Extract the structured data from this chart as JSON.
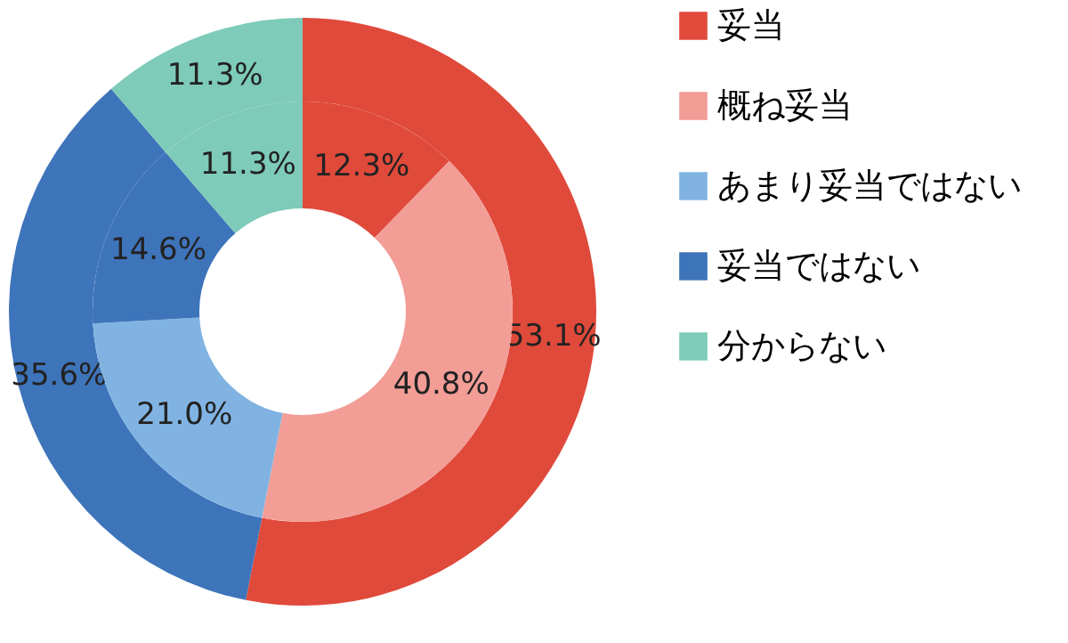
{
  "chart_data": {
    "type": "donut",
    "categories": [
      "妥当",
      "概ね妥当",
      "あまり妥当ではない",
      "妥当ではない",
      "分からない"
    ],
    "colors": [
      "#e04a3b",
      "#f29d96",
      "#80b3e2",
      "#3e74ba",
      "#7ecbb9"
    ],
    "series": [
      {
        "values": [
          53.1,
          null,
          null,
          35.6,
          11.3
        ],
        "value_labels": [
          "53.1%",
          null,
          null,
          "35.6%",
          "11.3%"
        ]
      },
      {
        "values": [
          12.3,
          40.8,
          21.0,
          14.6,
          11.3
        ],
        "value_labels": [
          "12.3%",
          "40.8%",
          "21.0%",
          "14.6%",
          "11.3%"
        ]
      }
    ],
    "legend": "right"
  }
}
